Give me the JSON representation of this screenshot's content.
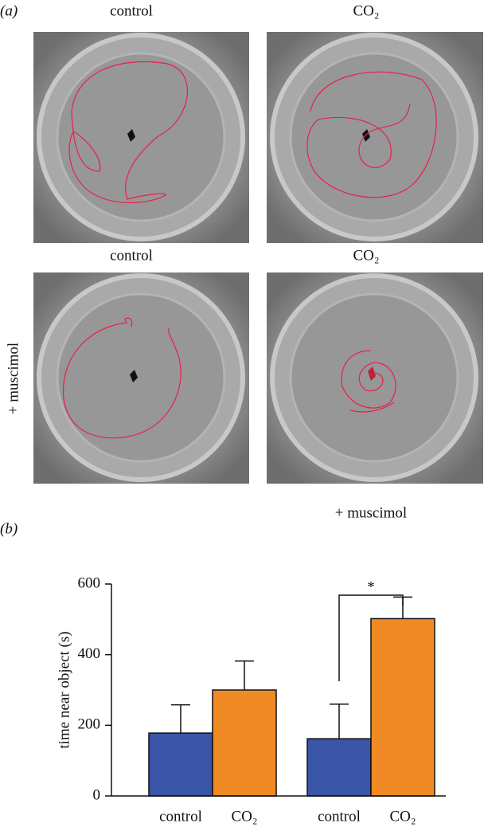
{
  "panel_a": {
    "label": "(a)",
    "top_labels": [
      "control",
      "CO₂"
    ],
    "bottom_labels": [
      "control",
      "CO₂"
    ],
    "row_label": "+ muscimol"
  },
  "chart_data": {
    "type": "bar",
    "panel_label": "(b)",
    "y_label": "time near object (s)",
    "categories": [
      "control",
      "CO₂",
      "control",
      "CO₂"
    ],
    "values": [
      178,
      300,
      162,
      502
    ],
    "errors": [
      80,
      82,
      98,
      61
    ],
    "colors": [
      "#3a55a8",
      "#f08a24",
      "#3a55a8",
      "#f08a24"
    ],
    "ylim": [
      0,
      600
    ],
    "yticks": [
      0,
      200,
      400,
      600
    ],
    "group_label": "+ muscimol",
    "significance": "*"
  }
}
